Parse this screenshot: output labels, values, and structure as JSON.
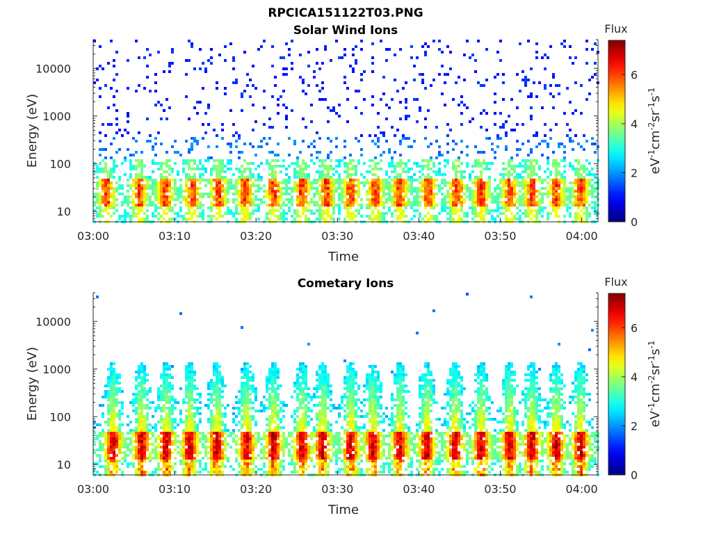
{
  "figure": {
    "title": "RPCICA151122T03.PNG"
  },
  "colorbar": {
    "label": "Flux",
    "unit_base": "eV",
    "unit_sup1": "-1",
    "unit_cm": "cm",
    "unit_sup2": "-2",
    "unit_sr": "sr",
    "unit_sup3": "-1",
    "unit_s": "s",
    "unit_sup4": "-1",
    "range": [
      0,
      7.4
    ],
    "ticks": [
      "0",
      "2",
      "4",
      "6"
    ],
    "colormap": "jet"
  },
  "chart_data": [
    {
      "type": "heatmap",
      "title": "Solar Wind Ions",
      "xlabel": "Time",
      "ylabel": "Energy (eV)",
      "yscale": "log",
      "ylim": [
        6,
        40000
      ],
      "xlim": [
        "03:00",
        "04:02"
      ],
      "xticks": [
        "03:00",
        "03:10",
        "03:20",
        "03:30",
        "03:40",
        "03:50",
        "04:00"
      ],
      "yticks": [
        "10",
        "100",
        "1000",
        "10000"
      ],
      "bursts_minutes": [
        1.5,
        5.5,
        8.7,
        12,
        15.2,
        18.5,
        22,
        25.5,
        28.5,
        31.5,
        34.5,
        37.5,
        41,
        44.5,
        47.5,
        51,
        53.7,
        56.7,
        59.7
      ],
      "peak_flux": 6.5,
      "peak_energy_eV": 30
    },
    {
      "type": "heatmap",
      "title": "Cometary Ions",
      "xlabel": "Time",
      "ylabel": "Energy (eV)",
      "yscale": "log",
      "ylim": [
        6,
        40000
      ],
      "xlim": [
        "03:00",
        "04:02"
      ],
      "xticks": [
        "03:00",
        "03:10",
        "03:20",
        "03:30",
        "03:40",
        "03:50",
        "04:00"
      ],
      "yticks": [
        "10",
        "100",
        "1000",
        "10000"
      ],
      "bursts_minutes": [
        2.3,
        5.8,
        8.8,
        11.7,
        15,
        18.7,
        22,
        25.5,
        28,
        31.5,
        34.2,
        37.5,
        40.8,
        44.3,
        47.5,
        51,
        53.7,
        56.7,
        59.7
      ],
      "peak_flux": 7.3,
      "peak_energy_eV": 30
    }
  ]
}
